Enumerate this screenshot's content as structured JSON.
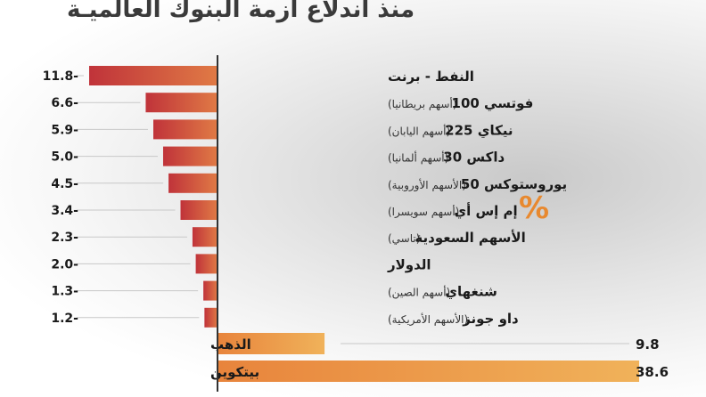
{
  "chart_data": {
    "type": "bar",
    "orientation": "horizontal",
    "title": "منذ اندلاع أزمة البنوك العالميـة",
    "unit_symbol": "%",
    "categories": [
      {
        "main": "النفط - برنت",
        "sub": ""
      },
      {
        "main": "فوتسي 100",
        "sub": "(أسهم بريطانيا)"
      },
      {
        "main": "نيكاي 225",
        "sub": "(أسهم اليابان)"
      },
      {
        "main": "داكس 30",
        "sub": "(أسهم ألمانيا)"
      },
      {
        "main": "يوروستوكس 50",
        "sub": "(الأسهم الأوروبية)"
      },
      {
        "main": "إم إس أي",
        "sub": "(أسهم سويسرا)"
      },
      {
        "main": "الأسهم السعودية",
        "sub": "(تاسي)"
      },
      {
        "main": "الدولار",
        "sub": ""
      },
      {
        "main": "شنغهاي",
        "sub": "(أسهم الصين)"
      },
      {
        "main": "داو جونز",
        "sub": "(الأسهم الأمريكية)"
      },
      {
        "main": "الذهب",
        "sub": ""
      },
      {
        "main": "بيتكوين",
        "sub": ""
      }
    ],
    "values": [
      -11.8,
      -6.6,
      -5.9,
      -5.0,
      -4.5,
      -3.4,
      -2.3,
      -2.0,
      -1.3,
      -1.2,
      9.8,
      38.6
    ],
    "value_labels": [
      "11.8-",
      "6.6-",
      "5.9-",
      "5.0-",
      "4.5-",
      "3.4-",
      "2.3-",
      "2.0-",
      "1.3-",
      "1.2-",
      "9.8",
      "38.6"
    ],
    "colors": {
      "negative_dark": "#c0333a",
      "negative_light": "#e07a45",
      "positive_light": "#e8843c",
      "positive_dark": "#f0b25a",
      "axis": "#333333",
      "label": "#1a1a1a",
      "sub_label": "#333333"
    }
  }
}
